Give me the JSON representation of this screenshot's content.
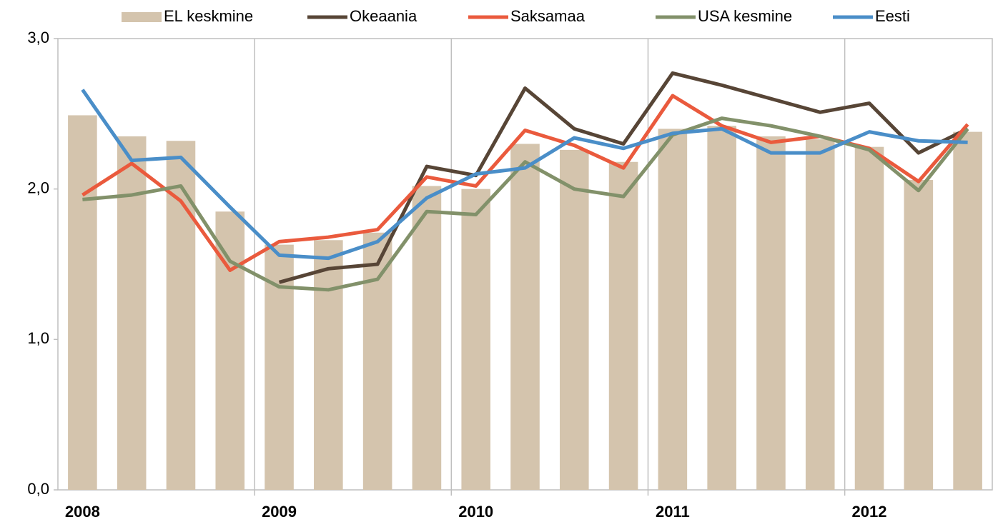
{
  "chart_data": {
    "type": "bar",
    "categories": [
      "2008",
      null,
      null,
      null,
      "2009",
      null,
      null,
      null,
      "2010",
      null,
      null,
      null,
      "2011",
      null,
      null,
      null,
      "2012",
      null,
      null
    ],
    "series": [
      {
        "name": "EL keskmine",
        "type": "bar",
        "color": "#d4c4ad",
        "values": [
          2.49,
          2.35,
          2.32,
          1.85,
          1.63,
          1.66,
          1.71,
          2.02,
          2.0,
          2.3,
          2.26,
          2.18,
          2.4,
          2.42,
          2.35,
          2.33,
          2.28,
          2.06,
          2.38
        ]
      },
      {
        "name": "Okeaania",
        "type": "line",
        "color": "#574536",
        "values": [
          null,
          null,
          null,
          null,
          1.38,
          1.47,
          1.5,
          2.15,
          2.09,
          2.67,
          2.4,
          2.3,
          2.77,
          2.69,
          2.6,
          2.51,
          2.57,
          2.24,
          2.4
        ]
      },
      {
        "name": "Saksamaa",
        "type": "line",
        "color": "#ea5a3d",
        "values": [
          1.96,
          2.17,
          1.92,
          1.46,
          1.65,
          1.68,
          1.73,
          2.08,
          2.02,
          2.39,
          2.29,
          2.14,
          2.62,
          2.42,
          2.31,
          2.35,
          2.27,
          2.05,
          2.43
        ]
      },
      {
        "name": "USA kesmine",
        "type": "line",
        "color": "#82916a",
        "values": [
          1.93,
          1.96,
          2.02,
          1.52,
          1.35,
          1.33,
          1.4,
          1.85,
          1.83,
          2.18,
          2.0,
          1.95,
          2.36,
          2.47,
          2.42,
          2.35,
          2.26,
          1.99,
          2.4
        ]
      },
      {
        "name": "Eesti",
        "type": "line",
        "color": "#4a8ec8",
        "values": [
          2.66,
          2.19,
          2.21,
          1.88,
          1.56,
          1.54,
          1.65,
          1.94,
          2.1,
          2.14,
          2.34,
          2.27,
          2.37,
          2.4,
          2.24,
          2.24,
          2.38,
          2.32,
          2.31
        ]
      }
    ],
    "ylim": [
      0,
      3
    ],
    "yticks": [
      {
        "value": 0,
        "label": "0,0"
      },
      {
        "value": 1,
        "label": "1,0"
      },
      {
        "value": 2,
        "label": "2,0"
      },
      {
        "value": 3,
        "label": "3,0"
      }
    ],
    "legend": "top"
  }
}
